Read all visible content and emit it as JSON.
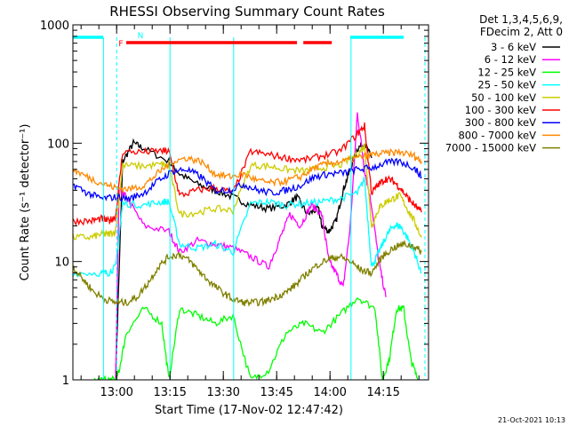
{
  "chart_data": {
    "type": "line",
    "title": "RHESSI Observing Summary Count Rates",
    "xlabel": "Start Time (17-Nov-02 12:47:42)",
    "ylabel": "Count Rate (s⁻¹ detector⁻¹)",
    "y_scale": "log",
    "ylim": [
      1,
      1000
    ],
    "xlim": [
      0,
      100
    ],
    "x_ticks": [
      "13:00",
      "13:15",
      "13:30",
      "13:45",
      "14:00",
      "14:15"
    ],
    "x_tick_minutes": [
      12.3,
      27.3,
      42.3,
      57.3,
      72.3,
      87.3
    ],
    "y_ticks": [
      "1",
      "10",
      "100",
      "1000"
    ],
    "y_tick_values": [
      1,
      10,
      100,
      1000
    ],
    "legend_header": [
      "Det 1,3,4,5,6,9,",
      "FDecim 2, Att 0"
    ],
    "footer_date": "21-Oct-2021 10:13",
    "flags": {
      "F": "F",
      "N": "N"
    },
    "series": [
      {
        "name": "3 - 6 keV",
        "color": "#000000",
        "x": [
          0,
          10,
          12,
          14,
          17,
          20,
          27,
          30,
          35,
          40,
          45,
          50,
          55,
          60,
          63,
          66,
          69,
          70,
          72,
          74,
          76,
          78,
          80,
          82,
          84
        ],
        "y": [
          null,
          null,
          1,
          70,
          100,
          90,
          70,
          55,
          45,
          40,
          35,
          30,
          28,
          30,
          35,
          25,
          28,
          20,
          18,
          22,
          40,
          60,
          90,
          100,
          75
        ]
      },
      {
        "name": "6 - 12 keV",
        "color": "#ff00ff",
        "x": [
          0,
          10,
          12,
          13,
          15,
          20,
          27,
          30,
          35,
          40,
          45,
          50,
          55,
          58,
          61,
          64,
          67,
          70,
          72,
          74,
          76,
          78,
          80,
          82,
          84,
          86,
          88
        ],
        "y": [
          null,
          null,
          1,
          40,
          35,
          20,
          18,
          12,
          15,
          14,
          13,
          11,
          9,
          15,
          25,
          20,
          30,
          25,
          10,
          8,
          6,
          20,
          180,
          60,
          30,
          10,
          5
        ]
      },
      {
        "name": "12 - 25 keV",
        "color": "#00ff00",
        "x": [
          0,
          4,
          6,
          10,
          12,
          13,
          15,
          20,
          25,
          27,
          30,
          35,
          40,
          45,
          50,
          55,
          60,
          65,
          70,
          75,
          80,
          85,
          87,
          89,
          91,
          93,
          95,
          97
        ],
        "y": [
          null,
          null,
          1,
          1,
          1,
          1.2,
          2.5,
          4,
          3,
          1,
          4,
          3.5,
          3,
          3.5,
          1,
          1.2,
          2.5,
          3,
          2.5,
          3.5,
          5,
          4,
          1,
          1.5,
          4,
          4,
          1.5,
          1
        ]
      },
      {
        "name": "25 - 50 keV",
        "color": "#00ffff",
        "x": [
          0,
          8,
          10,
          12,
          14,
          20,
          25,
          27,
          30,
          35,
          40,
          45,
          50,
          55,
          60,
          65,
          70,
          75,
          80,
          82,
          84,
          86,
          88,
          90,
          92,
          94,
          96,
          98
        ],
        "y": [
          8,
          8,
          8,
          9,
          31,
          30,
          32,
          32,
          14,
          13,
          14,
          12,
          31,
          32,
          30,
          31,
          32,
          34,
          38,
          50,
          9,
          12,
          16,
          20,
          20,
          16,
          12,
          8
        ]
      },
      {
        "name": "50 - 100 keV",
        "color": "#cccc00",
        "x": [
          0,
          5,
          8,
          10,
          12,
          14,
          20,
          25,
          27,
          30,
          35,
          40,
          45,
          50,
          55,
          60,
          65,
          70,
          75,
          80,
          82,
          84,
          86,
          88,
          90,
          92,
          94,
          96,
          98
        ],
        "y": [
          16,
          16,
          17,
          17,
          18,
          65,
          64,
          66,
          64,
          25,
          26,
          28,
          27,
          65,
          64,
          60,
          58,
          62,
          65,
          80,
          95,
          20,
          28,
          32,
          34,
          36,
          28,
          22,
          16
        ]
      },
      {
        "name": "100 - 300 keV",
        "color": "#ff0000",
        "x": [
          0,
          5,
          8,
          10,
          12,
          14,
          20,
          25,
          27,
          30,
          35,
          40,
          45,
          50,
          55,
          60,
          65,
          70,
          75,
          80,
          82,
          84,
          86,
          88,
          90,
          92,
          94,
          96,
          98
        ],
        "y": [
          22,
          22,
          23,
          22,
          24,
          85,
          84,
          86,
          85,
          36,
          40,
          42,
          38,
          85,
          80,
          75,
          72,
          78,
          85,
          120,
          140,
          38,
          45,
          50,
          48,
          42,
          35,
          30,
          26
        ]
      },
      {
        "name": "300 - 800 keV",
        "color": "#0000ff",
        "x": [
          0,
          4,
          8,
          12,
          16,
          20,
          24,
          28,
          32,
          36,
          40,
          44,
          48,
          52,
          56,
          60,
          64,
          68,
          72,
          76,
          80,
          84,
          88,
          92,
          96,
          98
        ],
        "y": [
          45,
          38,
          34,
          35,
          34,
          38,
          48,
          58,
          60,
          52,
          40,
          40,
          45,
          40,
          38,
          40,
          44,
          52,
          55,
          56,
          60,
          62,
          68,
          70,
          62,
          52
        ]
      },
      {
        "name": "800 - 7000 keV",
        "color": "#ff8800",
        "x": [
          0,
          4,
          8,
          12,
          16,
          20,
          24,
          28,
          32,
          36,
          40,
          44,
          48,
          52,
          56,
          60,
          64,
          68,
          72,
          76,
          80,
          84,
          88,
          92,
          96,
          98
        ],
        "y": [
          60,
          52,
          46,
          42,
          41,
          44,
          56,
          70,
          75,
          70,
          55,
          52,
          55,
          48,
          46,
          48,
          52,
          62,
          68,
          70,
          75,
          80,
          82,
          84,
          78,
          70
        ]
      },
      {
        "name": "7000 - 15000 keV",
        "color": "#808000",
        "x": [
          0,
          3,
          6,
          9,
          12,
          15,
          18,
          21,
          24,
          27,
          30,
          33,
          36,
          39,
          42,
          45,
          48,
          51,
          54,
          57,
          60,
          63,
          66,
          69,
          72,
          75,
          78,
          81,
          84,
          87,
          90,
          93,
          96,
          98
        ],
        "y": [
          9,
          7,
          5.5,
          4.8,
          4.5,
          4.5,
          5,
          6.5,
          9,
          11,
          11.5,
          10,
          8,
          6.5,
          5.5,
          4.8,
          4.5,
          4.5,
          4.6,
          5,
          5.5,
          6.5,
          8,
          9.5,
          10.5,
          11,
          10,
          8.5,
          8,
          11,
          13,
          14,
          13.5,
          12
        ]
      }
    ]
  },
  "status_bars": [
    {
      "color": "#ff0000",
      "segments": [
        [
          15,
          63
        ],
        [
          64.8,
          72.8
        ]
      ]
    },
    {
      "color": "#00ffff",
      "segments": [
        [
          0,
          8.5
        ],
        [
          78,
          93
        ]
      ]
    }
  ],
  "vlines": {
    "solid": [
      8.6,
      27.3,
      45.2,
      78.2
    ],
    "dashed": [
      12.3,
      99
    ]
  }
}
